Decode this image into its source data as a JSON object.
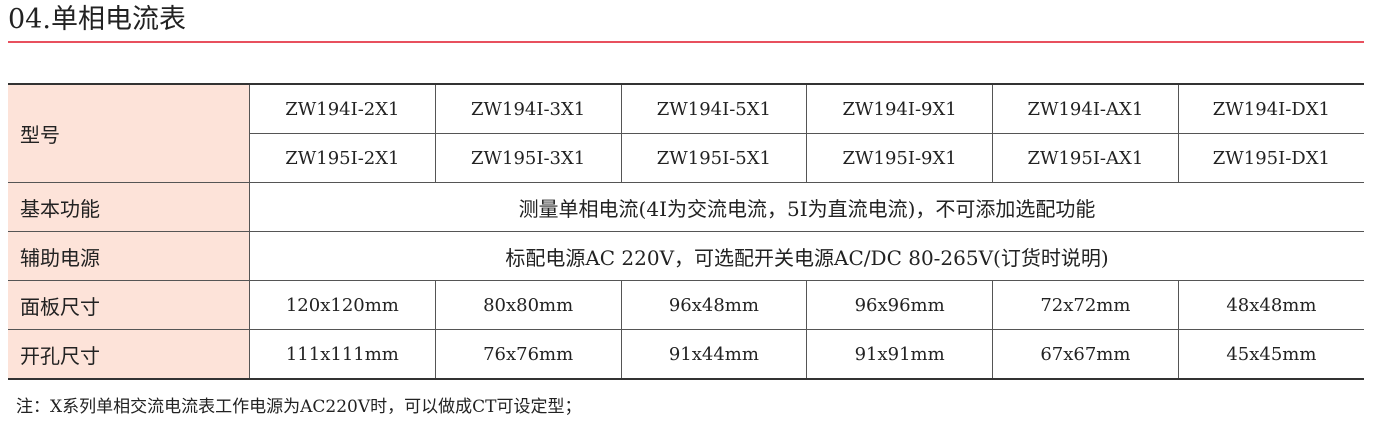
{
  "title": "04.单相电流表",
  "table": {
    "model_label": "型号",
    "models_ac": [
      "ZW194I-2X1",
      "ZW194I-3X1",
      "ZW194I-5X1",
      "ZW194I-9X1",
      "ZW194I-AX1",
      "ZW194I-DX1"
    ],
    "models_dc": [
      "ZW195I-2X1",
      "ZW195I-3X1",
      "ZW195I-5X1",
      "ZW195I-9X1",
      "ZW195I-AX1",
      "ZW195I-DX1"
    ],
    "function_label": "基本功能",
    "function": "测量单相电流(4I为交流电流，5I为直流电流)，不可添加选配功能",
    "power_label": "辅助电源",
    "power": "标配电源AC 220V，可选配开关电源AC/DC 80-265V(订货时说明)",
    "panel_label": "面板尺寸",
    "panel": [
      "120x120mm",
      "80x80mm",
      "96x48mm",
      "96x96mm",
      "72x72mm",
      "48x48mm"
    ],
    "cutout_label": "开孔尺寸",
    "cutout": [
      "111x111mm",
      "76x76mm",
      "91x44mm",
      "91x91mm",
      "67x67mm",
      "45x45mm"
    ]
  },
  "note": "注：X系列单相交流电流表工作电源为AC220V时，可以做成CT可设定型；",
  "colors": {
    "accent": "#e8505e",
    "header_bg": "#fde3d9"
  }
}
